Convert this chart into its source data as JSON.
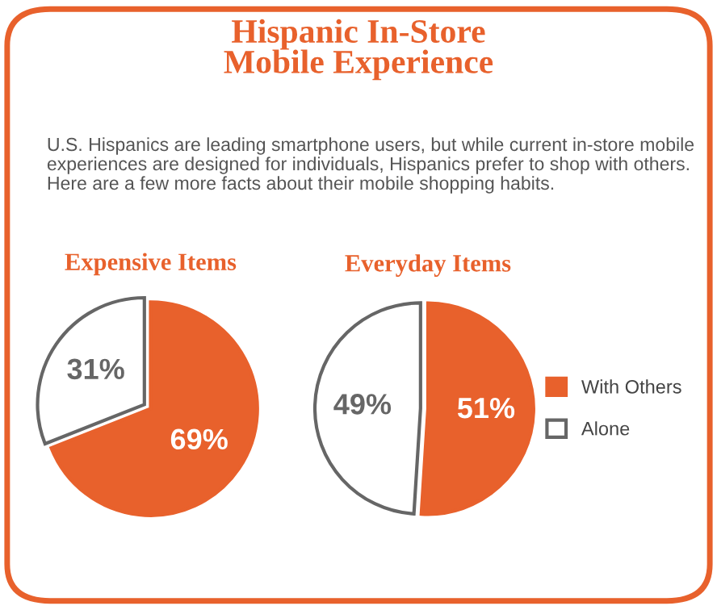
{
  "chart_data": [
    {
      "type": "pie",
      "title": "Expensive Items",
      "categories": [
        "With Others",
        "Alone"
      ],
      "values": [
        69,
        31
      ],
      "value_labels": [
        "69%",
        "31%"
      ],
      "colors": [
        "#e8612c",
        "#ffffff"
      ],
      "legend": "right"
    },
    {
      "type": "pie",
      "title": "Everyday Items",
      "categories": [
        null,
        null
      ],
      "values": [
        51,
        49
      ],
      "value_labels": [
        "51%",
        "49%"
      ],
      "colors": [
        "#e8612c",
        "#ffffff"
      ],
      "legend": false
    },
    {
      "type": "other",
      "title": "Hispanic In-Store\nMobile Experience",
      "subtitle": "U.S. Hispanics are leading smartphone users, but while current in-store mobile experiences are designed for individuals, Hispanics prefer to shop with others. Here are a few more facts about their mobile shopping habits."
    }
  ]
}
